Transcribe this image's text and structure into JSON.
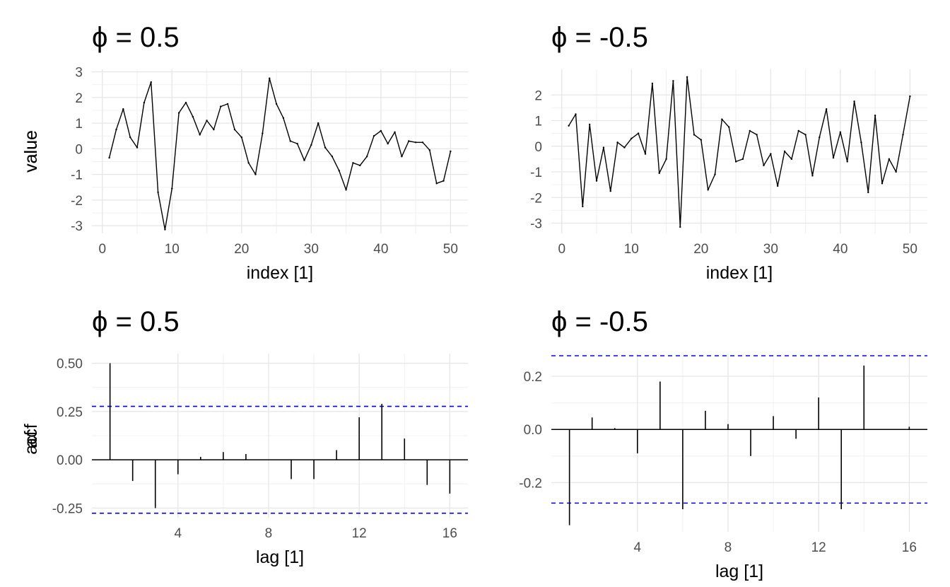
{
  "chart_data": [
    {
      "type": "line",
      "title": "ϕ = 0.5",
      "xlabel": "index [1]",
      "ylabel": "value",
      "xlim": [
        -1.5,
        52.5
      ],
      "ylim": [
        -3.3,
        3.1
      ],
      "xticks": [
        0,
        10,
        20,
        30,
        40,
        50
      ],
      "xtick_labels": [
        "0",
        "10",
        "20",
        "30",
        "40",
        "50"
      ],
      "yticks": [
        -3,
        -2,
        -1,
        0,
        1,
        2,
        3
      ],
      "ytick_labels": [
        "-3",
        "-2",
        "-1",
        "0",
        "1",
        "2",
        "3"
      ],
      "grid": true,
      "x": [
        1,
        2,
        3,
        4,
        5,
        6,
        7,
        8,
        9,
        10,
        11,
        12,
        13,
        14,
        15,
        16,
        17,
        18,
        19,
        20,
        21,
        22,
        23,
        24,
        25,
        26,
        27,
        28,
        29,
        30,
        31,
        32,
        33,
        34,
        35,
        36,
        37,
        38,
        39,
        40,
        41,
        42,
        43,
        44,
        45,
        46,
        47,
        48,
        49,
        50
      ],
      "values": [
        -0.35,
        0.75,
        1.55,
        0.45,
        0.05,
        1.8,
        2.6,
        -1.7,
        -3.15,
        -1.55,
        1.4,
        1.8,
        1.25,
        0.55,
        1.1,
        0.75,
        1.65,
        1.75,
        0.75,
        0.45,
        -0.55,
        -1.0,
        0.6,
        2.75,
        1.75,
        1.2,
        0.3,
        0.2,
        -0.45,
        0.15,
        1.0,
        0.05,
        -0.3,
        -0.85,
        -1.6,
        -0.55,
        -0.65,
        -0.3,
        0.5,
        0.7,
        0.2,
        0.65,
        -0.3,
        0.3,
        0.25,
        0.25,
        -0.05,
        -1.35,
        -1.25,
        -0.1
      ]
    },
    {
      "type": "line",
      "title": "ϕ = -0.5",
      "xlabel": "index [1]",
      "ylabel": "value",
      "xlim": [
        -1.5,
        52.5
      ],
      "ylim": [
        -3.4,
        3.0
      ],
      "xticks": [
        0,
        10,
        20,
        30,
        40,
        50
      ],
      "xtick_labels": [
        "0",
        "10",
        "20",
        "30",
        "40",
        "50"
      ],
      "yticks": [
        -3,
        -2,
        -1,
        0,
        1,
        2
      ],
      "ytick_labels": [
        "-3",
        "-2",
        "-1",
        "0",
        "1",
        "2"
      ],
      "grid": true,
      "x": [
        1,
        2,
        3,
        4,
        5,
        6,
        7,
        8,
        9,
        10,
        11,
        12,
        13,
        14,
        15,
        16,
        17,
        18,
        19,
        20,
        21,
        22,
        23,
        24,
        25,
        26,
        27,
        28,
        29,
        30,
        31,
        32,
        33,
        34,
        35,
        36,
        37,
        38,
        39,
        40,
        41,
        42,
        43,
        44,
        45,
        46,
        47,
        48,
        49,
        50
      ],
      "values": [
        0.8,
        1.25,
        -2.35,
        0.85,
        -1.35,
        -0.05,
        -1.75,
        0.15,
        -0.05,
        0.3,
        0.5,
        -0.3,
        2.45,
        -1.05,
        -0.5,
        2.55,
        -3.15,
        2.7,
        0.45,
        0.25,
        -1.7,
        -1.1,
        1.05,
        0.75,
        -0.6,
        -0.5,
        0.6,
        0.45,
        -0.75,
        -0.3,
        -1.55,
        -0.2,
        -0.5,
        0.6,
        0.45,
        -1.15,
        0.35,
        1.45,
        -0.45,
        0.55,
        -0.6,
        1.75,
        0.15,
        -1.8,
        1.2,
        -1.45,
        -0.5,
        -1.0,
        0.45,
        1.95
      ]
    },
    {
      "type": "bar",
      "title": "ϕ = 0.5",
      "xlabel": "lag [1]",
      "ylabel": "acf",
      "xlim": [
        0.2,
        16.8
      ],
      "ylim": [
        -0.3,
        0.55
      ],
      "xticks": [
        4,
        8,
        12,
        16
      ],
      "xtick_labels": [
        "4",
        "8",
        "12",
        "16"
      ],
      "yticks": [
        -0.25,
        0.0,
        0.25,
        0.5
      ],
      "ytick_labels": [
        "-0.25",
        "0.00",
        "0.25",
        "0.50"
      ],
      "grid": true,
      "confidence_bound": 0.277,
      "confidence_color": "#0000ff",
      "x": [
        1,
        2,
        3,
        4,
        5,
        6,
        7,
        8,
        9,
        10,
        11,
        12,
        13,
        14,
        15,
        16
      ],
      "values": [
        0.5,
        -0.11,
        -0.25,
        -0.075,
        0.015,
        0.04,
        0.03,
        0.0,
        -0.1,
        -0.1,
        0.05,
        0.22,
        0.29,
        0.11,
        -0.13,
        -0.175
      ]
    },
    {
      "type": "bar",
      "title": "ϕ = -0.5",
      "xlabel": "lag [1]",
      "ylabel": "acf",
      "xlim": [
        0.2,
        16.8
      ],
      "ylim": [
        -0.385,
        0.285
      ],
      "xticks": [
        4,
        8,
        12,
        16
      ],
      "xtick_labels": [
        "4",
        "8",
        "12",
        "16"
      ],
      "yticks": [
        -0.2,
        0.0,
        0.2
      ],
      "ytick_labels": [
        "-0.2",
        "0.0",
        "0.2"
      ],
      "grid": true,
      "confidence_bound": 0.277,
      "confidence_color": "#0000ff",
      "x": [
        1,
        2,
        3,
        4,
        5,
        6,
        7,
        8,
        9,
        10,
        11,
        12,
        13,
        14,
        15,
        16
      ],
      "values": [
        -0.36,
        0.045,
        0.005,
        -0.09,
        0.18,
        -0.3,
        0.07,
        0.02,
        -0.1,
        0.05,
        -0.035,
        0.12,
        -0.3,
        0.24,
        0.0,
        0.01
      ]
    }
  ]
}
